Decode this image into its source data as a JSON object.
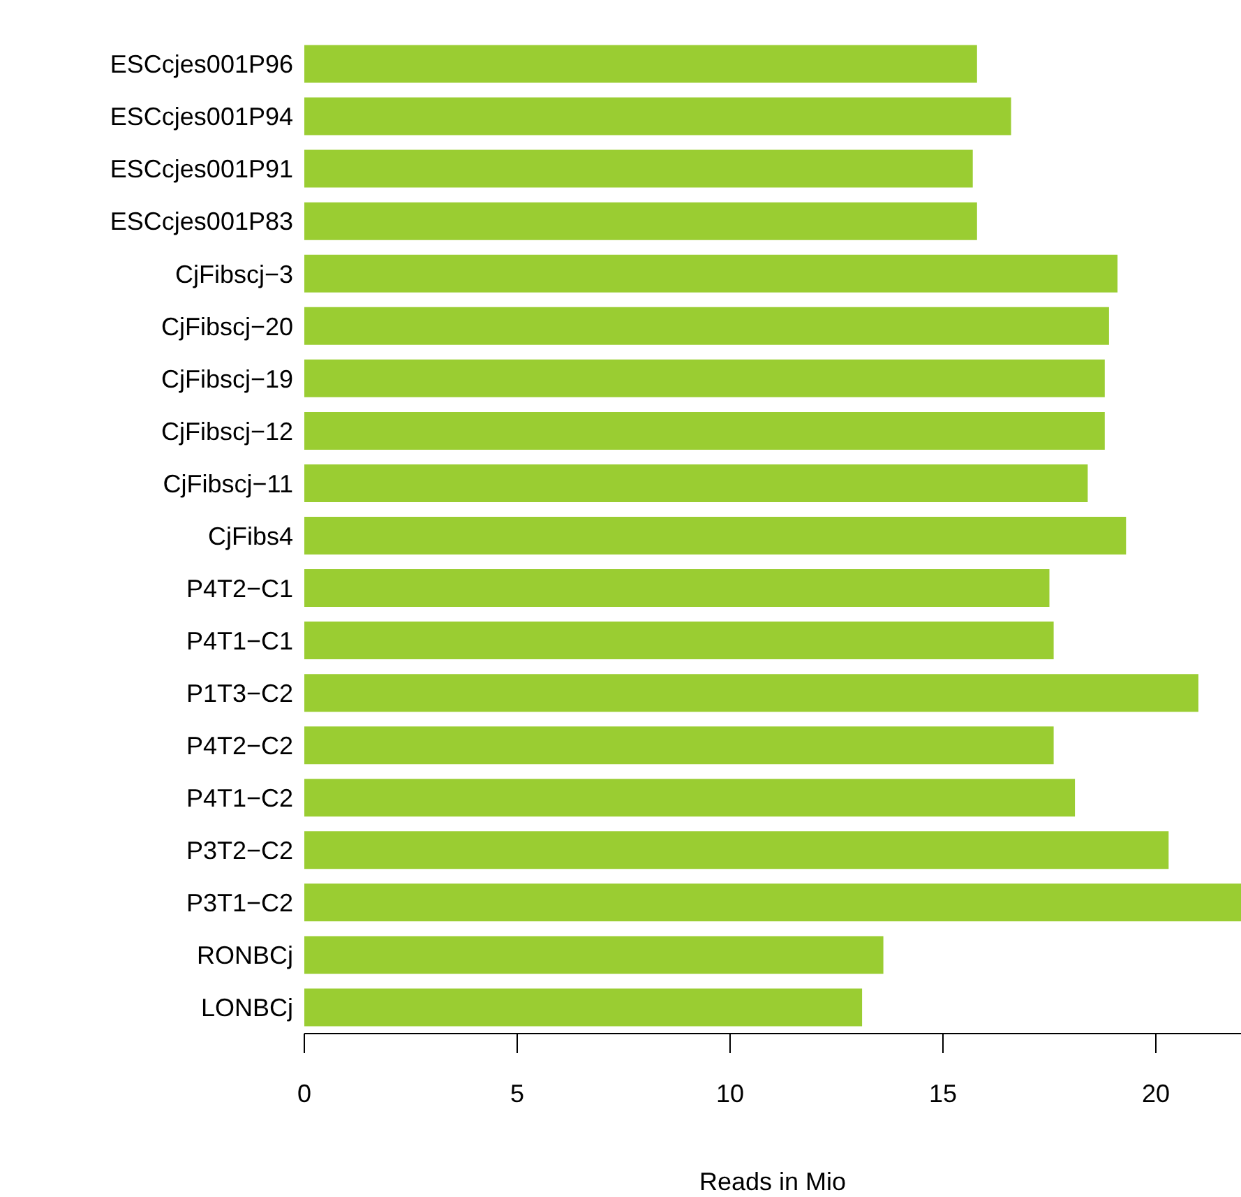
{
  "chart_data": {
    "type": "bar",
    "orientation": "horizontal",
    "xlabel": "Reads in Mio",
    "categories": [
      "ESCcjes001P96",
      "ESCcjes001P94",
      "ESCcjes001P91",
      "ESCcjes001P83",
      "CjFibscj−3",
      "CjFibscj−20",
      "CjFibscj−19",
      "CjFibscj−12",
      "CjFibscj−11",
      "CjFibs4",
      "P4T2−C1",
      "P4T1−C1",
      "P1T3−C2",
      "P4T2−C2",
      "P4T1−C2",
      "P3T2−C2",
      "P3T1−C2",
      "RONBCj",
      "LONBCj"
    ],
    "values": [
      15.8,
      16.6,
      15.7,
      15.8,
      19.1,
      18.9,
      18.8,
      18.8,
      18.4,
      19.3,
      17.5,
      17.6,
      21.0,
      17.6,
      18.1,
      20.3,
      22.0,
      13.6,
      13.1
    ],
    "color": "#9acd32",
    "xlim": [
      0,
      22
    ],
    "xticks": [
      0,
      5,
      10,
      15,
      20
    ]
  }
}
